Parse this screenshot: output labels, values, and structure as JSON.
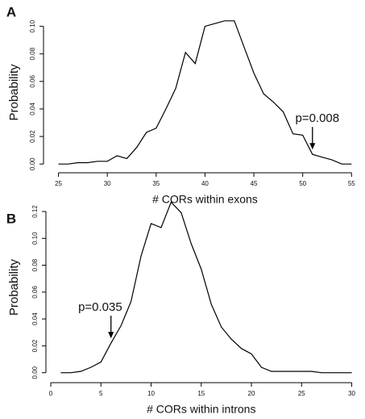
{
  "chart_data": [
    {
      "type": "line",
      "panel_label": "A",
      "color": "#000000",
      "xlabel": "# CORs within exons",
      "ylabel": "Probability",
      "x": [
        25,
        26,
        27,
        28,
        29,
        30,
        31,
        32,
        33,
        34,
        35,
        36,
        37,
        38,
        39,
        40,
        41,
        42,
        43,
        44,
        45,
        46,
        47,
        48,
        49,
        50,
        51,
        52,
        53,
        54,
        55
      ],
      "values": [
        0.0,
        0.0,
        0.001,
        0.001,
        0.002,
        0.002,
        0.006,
        0.004,
        0.012,
        0.023,
        0.026,
        0.04,
        0.055,
        0.081,
        0.073,
        0.1,
        0.102,
        0.104,
        0.104,
        0.085,
        0.066,
        0.051,
        0.045,
        0.038,
        0.022,
        0.021,
        0.007,
        0.005,
        0.003,
        0.0,
        0.0
      ],
      "xlim": [
        23.8,
        55.8
      ],
      "ylim": [
        -0.004,
        0.108
      ],
      "xticks": [
        25,
        30,
        35,
        40,
        45,
        50,
        55
      ],
      "yticks": [
        {
          "value": 0,
          "label": "0.00"
        },
        {
          "value": 0.02,
          "label": "0.02"
        },
        {
          "value": 0.04,
          "label": "0.04"
        },
        {
          "value": 0.06,
          "label": "0.06"
        },
        {
          "value": 0.08,
          "label": "0.08"
        },
        {
          "value": 0.1,
          "label": "0.10"
        }
      ],
      "annotations": [
        {
          "text": "p=0.008",
          "x": 51
        }
      ]
    },
    {
      "type": "line",
      "panel_label": "B",
      "color": "#000000",
      "xlabel": "# CORs within introns",
      "ylabel": "Probability",
      "x": [
        1,
        2,
        3,
        4,
        5,
        6,
        7,
        8,
        9,
        10,
        11,
        12,
        13,
        14,
        15,
        16,
        17,
        18,
        19,
        20,
        21,
        22,
        23,
        24,
        25,
        26,
        27,
        28,
        29,
        30
      ],
      "values": [
        0.0,
        0.0,
        0.001,
        0.004,
        0.008,
        0.022,
        0.035,
        0.053,
        0.087,
        0.111,
        0.108,
        0.127,
        0.119,
        0.096,
        0.077,
        0.051,
        0.034,
        0.025,
        0.018,
        0.014,
        0.004,
        0.001,
        0.001,
        0.001,
        0.001,
        0.001,
        0.0,
        0.0,
        0.0,
        0.0
      ],
      "xlim": [
        -0.16,
        31.16
      ],
      "ylim": [
        -0.005,
        0.132
      ],
      "xticks": [
        0,
        5,
        10,
        15,
        20,
        25,
        30
      ],
      "yticks": [
        {
          "value": 0,
          "label": "0.00"
        },
        {
          "value": 0.02,
          "label": "0.02"
        },
        {
          "value": 0.04,
          "label": "0.04"
        },
        {
          "value": 0.06,
          "label": "0.06"
        },
        {
          "value": 0.08,
          "label": "0.08"
        },
        {
          "value": 0.1,
          "label": "0.10"
        },
        {
          "value": 0.12,
          "label": "0.12"
        }
      ],
      "annotations": [
        {
          "text": "p=0.035",
          "x": 6
        }
      ]
    }
  ]
}
